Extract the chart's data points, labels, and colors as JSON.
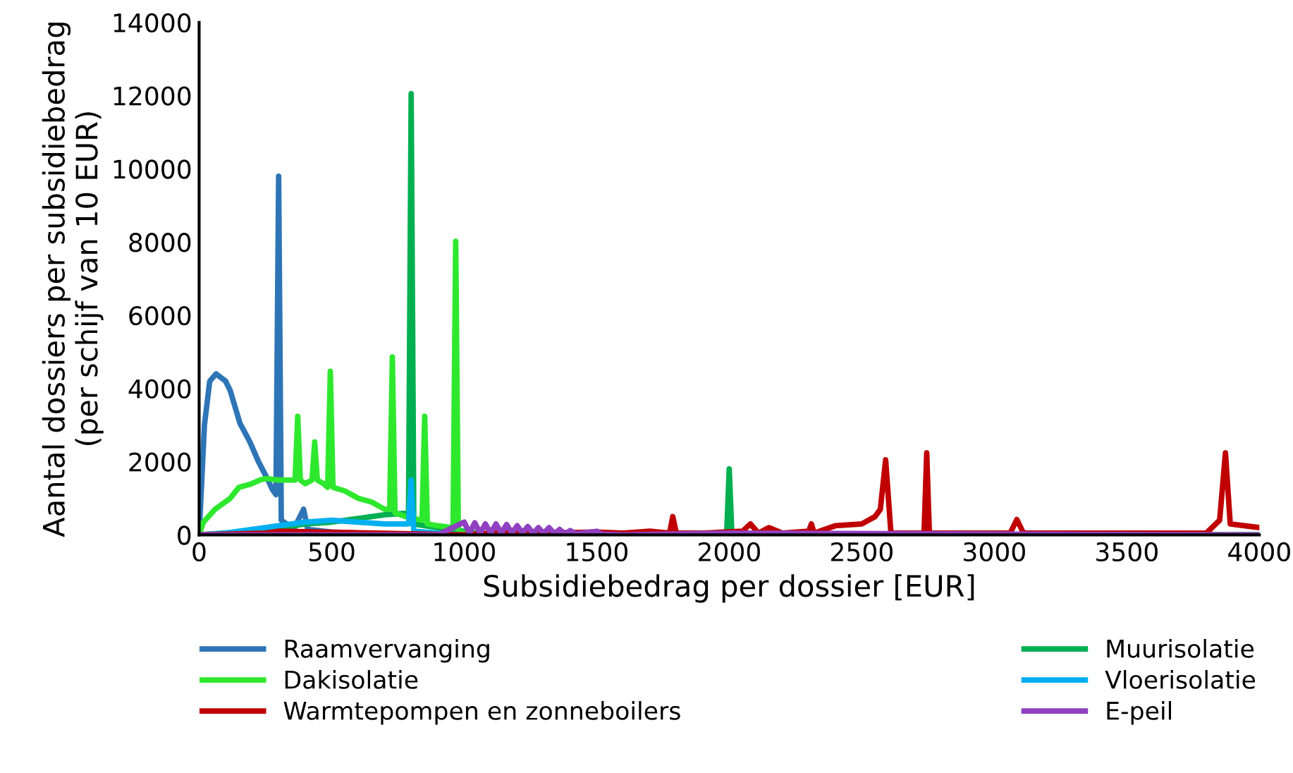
{
  "chart_data": {
    "type": "line",
    "xlabel": "Subsidiebedrag per dossier [EUR]",
    "ylabel": "Aantal dossiers per subsidiebedrag\n(per schijf van 10 EUR)",
    "xlim": [
      0,
      4000
    ],
    "xticks": [
      0,
      500,
      1000,
      1500,
      2000,
      2500,
      3000,
      3500,
      4000
    ],
    "ylim": [
      0,
      14000
    ],
    "yticks": [
      0,
      2000,
      4000,
      6000,
      8000,
      10000,
      12000,
      14000
    ],
    "grid": false,
    "legend": "bottom",
    "marker": "none",
    "line_style": "solid",
    "series": [
      {
        "name": "Raamvervanging",
        "color": "#2e75b6",
        "x": [
          0,
          20,
          40,
          64,
          100,
          117,
          154,
          191,
          224,
          260,
          277,
          290,
          300,
          310,
          330,
          360,
          394,
          410,
          500,
          600,
          800,
          1000,
          4000
        ],
        "values": [
          0,
          3000,
          4200,
          4400,
          4200,
          3950,
          3050,
          2550,
          2000,
          1500,
          1230,
          1100,
          9800,
          400,
          300,
          200,
          700,
          150,
          80,
          50,
          20,
          0,
          0
        ]
      },
      {
        "name": "Muurisolatie",
        "color": "#00b050",
        "x": [
          0,
          200,
          300,
          400,
          500,
          600,
          700,
          790,
          800,
          810,
          900,
          1000,
          1100,
          1990,
          2000,
          2010,
          2100,
          4000
        ],
        "values": [
          0,
          100,
          200,
          300,
          350,
          450,
          550,
          600,
          12050,
          300,
          200,
          100,
          0,
          0,
          1800,
          0,
          0,
          0
        ]
      },
      {
        "name": "Dakisolatie",
        "color": "#2ee82e",
        "x": [
          0,
          16,
          60,
          117,
          150,
          191,
          230,
          253,
          300,
          362,
          372,
          382,
          400,
          426,
          436,
          446,
          470,
          485,
          495,
          505,
          550,
          600,
          650,
          700,
          719,
          729,
          739,
          780,
          841,
          851,
          861,
          900,
          958,
          968,
          978,
          1000,
          1100,
          4000
        ],
        "values": [
          0,
          350,
          700,
          1000,
          1300,
          1380,
          1500,
          1540,
          1500,
          1500,
          3240,
          1500,
          1400,
          1500,
          2540,
          1500,
          1400,
          1300,
          4470,
          1300,
          1200,
          1000,
          900,
          700,
          700,
          4860,
          600,
          500,
          400,
          3240,
          300,
          250,
          200,
          8020,
          100,
          50,
          0,
          0
        ]
      },
      {
        "name": "Vloerisolatie",
        "color": "#00b0f0",
        "x": [
          0,
          100,
          200,
          300,
          400,
          500,
          600,
          700,
          790,
          800,
          810,
          900,
          1000
        ],
        "values": [
          0,
          50,
          150,
          250,
          350,
          400,
          350,
          300,
          300,
          1500,
          100,
          50,
          0
        ]
      },
      {
        "name": "Warmtepompen en zonneboilers",
        "color": "#c00000",
        "x": [
          0,
          250,
          300,
          1000,
          1200,
          1300,
          1500,
          1600,
          1700,
          1775,
          1787,
          1800,
          1900,
          2050,
          2080,
          2110,
          2150,
          2200,
          2300,
          2310,
          2320,
          2400,
          2500,
          2550,
          2570,
          2590,
          2610,
          2700,
          2735,
          2745,
          2755,
          2900,
          3060,
          3085,
          3110,
          3300,
          3600,
          3800,
          3850,
          3872,
          3890,
          4000
        ],
        "values": [
          0,
          50,
          100,
          0,
          100,
          50,
          80,
          50,
          100,
          50,
          500,
          50,
          50,
          100,
          300,
          50,
          200,
          50,
          100,
          300,
          50,
          250,
          300,
          500,
          700,
          2050,
          50,
          50,
          50,
          2240,
          50,
          50,
          50,
          420,
          50,
          50,
          50,
          50,
          400,
          2240,
          300,
          200
        ]
      },
      {
        "name": "E-peil",
        "color": "#9040c0",
        "x": [
          0,
          900,
          1000,
          1020,
          1040,
          1060,
          1080,
          1100,
          1120,
          1140,
          1160,
          1180,
          1200,
          1220,
          1240,
          1260,
          1280,
          1300,
          1320,
          1340,
          1360,
          1380,
          1400,
          1420,
          1500,
          1520,
          1600,
          2000,
          4000
        ],
        "values": [
          0,
          0,
          350,
          50,
          330,
          50,
          300,
          50,
          300,
          50,
          280,
          50,
          250,
          50,
          230,
          40,
          200,
          40,
          200,
          30,
          150,
          30,
          120,
          30,
          100,
          20,
          0,
          50,
          0
        ]
      }
    ]
  }
}
